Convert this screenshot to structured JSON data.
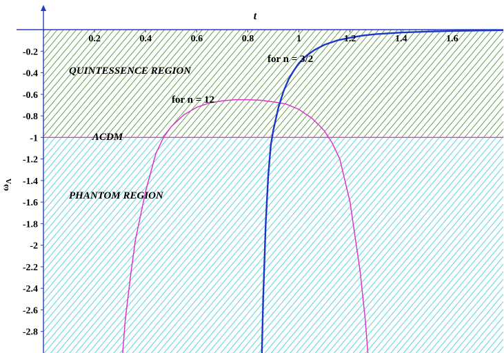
{
  "chart_data": {
    "type": "line",
    "xlabel": "t",
    "ylabel": "ω",
    "ylabel_sub": "Λ",
    "xlim": [
      0,
      1.8
    ],
    "ylim": [
      -3,
      0
    ],
    "x_ticks": [
      0.2,
      0.4,
      0.6,
      0.8,
      1,
      1.2,
      1.4,
      1.6
    ],
    "x_tick_labels": [
      "0.2",
      "0.4",
      "0.6",
      "0.8",
      "1",
      "1.2",
      "1.4",
      "1.6"
    ],
    "y_ticks": [
      -0.2,
      -0.4,
      -0.6,
      -0.8,
      -1,
      -1.2,
      -1.4,
      -1.6,
      -1.8,
      -2,
      -2.2,
      -2.4,
      -2.6,
      -2.8
    ],
    "y_tick_labels": [
      "-0.2",
      "-0.4",
      "-0.6",
      "-0.8",
      "-1",
      "-1.2",
      "-1.4",
      "-1.6",
      "-1.8",
      "-2",
      "-2.2",
      "-2.4",
      "-2.6",
      "-2.8"
    ],
    "regions": [
      {
        "label": "QUINTESSENCE REGION",
        "y_range": [
          -1,
          0
        ],
        "color": "#3a8a1e"
      },
      {
        "label": "PHANTOM REGION",
        "y_range": [
          -3,
          -1
        ],
        "color": "#2fc8d2"
      }
    ],
    "reference_line": {
      "label": "ΛCDM",
      "y": -1,
      "color": "#e040c8"
    },
    "series": [
      {
        "name": "for n = 12",
        "color": "#dd33cc",
        "x": [
          0.31,
          0.32,
          0.34,
          0.36,
          0.4,
          0.44,
          0.47,
          0.5,
          0.55,
          0.6,
          0.65,
          0.7,
          0.75,
          0.8,
          0.85,
          0.9,
          0.95,
          1.0,
          1.05,
          1.08,
          1.1,
          1.13,
          1.16,
          1.2,
          1.24,
          1.26,
          1.27
        ],
        "y": [
          -3.0,
          -2.7,
          -2.3,
          -1.95,
          -1.5,
          -1.15,
          -1.0,
          -0.9,
          -0.79,
          -0.72,
          -0.68,
          -0.66,
          -0.65,
          -0.65,
          -0.655,
          -0.67,
          -0.69,
          -0.74,
          -0.82,
          -0.89,
          -0.94,
          -1.05,
          -1.2,
          -1.6,
          -2.25,
          -2.7,
          -3.0
        ]
      },
      {
        "name": "for n = 3/2",
        "color": "#1a35c8",
        "x": [
          0.855,
          0.86,
          0.87,
          0.88,
          0.89,
          0.9,
          0.92,
          0.94,
          0.96,
          0.98,
          1.0,
          1.03,
          1.06,
          1.1,
          1.15,
          1.2,
          1.25,
          1.3,
          1.4,
          1.5,
          1.6,
          1.7,
          1.8
        ],
        "y": [
          -3.0,
          -2.5,
          -1.8,
          -1.35,
          -1.07,
          -0.93,
          -0.72,
          -0.57,
          -0.46,
          -0.38,
          -0.31,
          -0.24,
          -0.19,
          -0.14,
          -0.1,
          -0.075,
          -0.055,
          -0.042,
          -0.027,
          -0.018,
          -0.012,
          -0.008,
          -0.005
        ]
      }
    ]
  }
}
